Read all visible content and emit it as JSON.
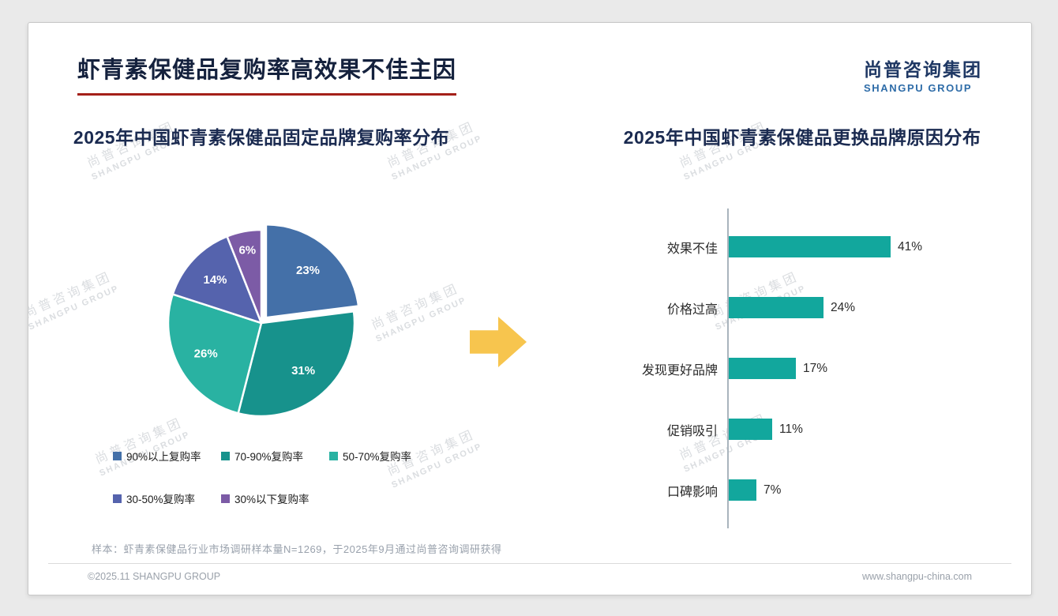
{
  "page": {
    "title": "虾青素保健品复购率高效果不佳主因",
    "logo": {
      "cn": "尚普咨询集团",
      "en": "SHANGPU GROUP"
    },
    "watermark": {
      "cn": "尚普咨询集团",
      "en": "SHANGPU GROUP"
    },
    "footnote": "样本：虾青素保健品行业市场调研样本量N=1269，于2025年9月通过尚普咨询调研获得",
    "footer": {
      "left": "©2025.11 SHANGPU GROUP",
      "right": "www.shangpu-china.com"
    },
    "colors": {
      "title_navy": "#14213d",
      "underline_red": "#a42019",
      "arrow_yellow": "#f7c54e"
    }
  },
  "chart_data": [
    {
      "type": "pie",
      "title": "2025年中国虾青素保健品固定品牌复购率分布",
      "labels": [
        "90%以上复购率",
        "70-90%复购率",
        "50-70%复购率",
        "30-50%复购率",
        "30%以下复购率"
      ],
      "values": [
        23,
        31,
        26,
        14,
        6
      ],
      "data_labels": [
        "23%",
        "31%",
        "26%",
        "14%",
        "6%"
      ],
      "colors": [
        "#4470a8",
        "#17928c",
        "#29b2a2",
        "#5563ad",
        "#7c5ba6"
      ],
      "legend_position": "bottom",
      "start_angle_deg": -90,
      "direction": "clockwise",
      "exploded_slice_index": 0
    },
    {
      "type": "bar",
      "orientation": "horizontal",
      "title": "2025年中国虾青素保健品更换品牌原因分布",
      "categories": [
        "效果不佳",
        "价格过高",
        "发现更好品牌",
        "促销吸引",
        "口碑影响"
      ],
      "values": [
        41,
        24,
        17,
        11,
        7
      ],
      "value_labels": [
        "41%",
        "24%",
        "17%",
        "11%",
        "7%"
      ],
      "bar_color": "#12a79d",
      "xlim": [
        0,
        45
      ],
      "grid": false
    }
  ]
}
